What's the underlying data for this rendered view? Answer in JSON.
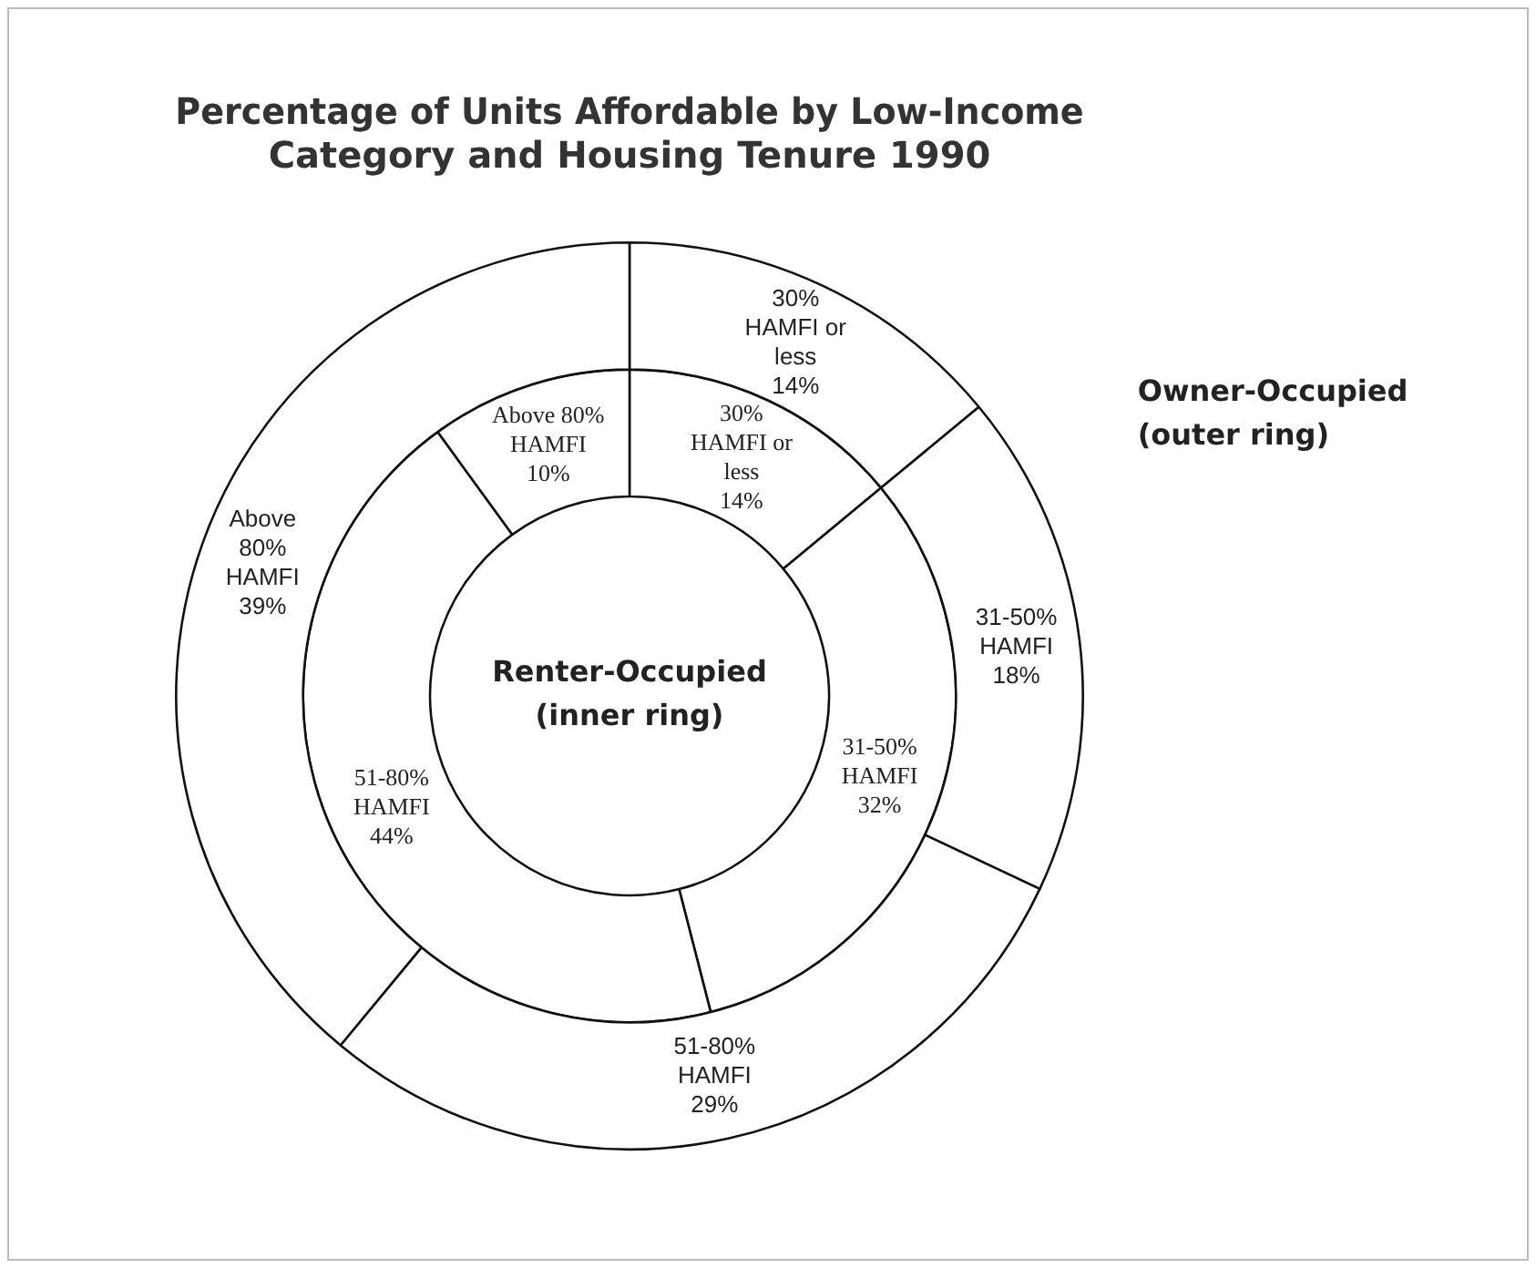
{
  "chart_data": {
    "type": "donut",
    "title": "Percentage of Units Affordable by Low-Income Category and Housing Tenure 1990",
    "categories": [
      "30% HAMFI or less",
      "31-50% HAMFI",
      "51-80% HAMFI",
      "Above 80% HAMFI"
    ],
    "series": [
      {
        "name": "Owner-Occupied (outer ring)",
        "values": [
          14,
          18,
          29,
          39
        ],
        "colors": [
          "#ffffff",
          "#ffffff",
          "#ffffff",
          "#ffffff"
        ],
        "value_labels": [
          "14%",
          "18%",
          "29%",
          "39%"
        ]
      },
      {
        "name": "Renter-Occupied (inner ring)",
        "values": [
          14,
          32,
          44,
          10
        ],
        "colors": [
          "#ffffff",
          "#ffffff",
          "#ffffff",
          "#ffffff"
        ],
        "value_labels": [
          "14%",
          "32%",
          "44%",
          "10%"
        ]
      }
    ],
    "legend": false
  }
}
